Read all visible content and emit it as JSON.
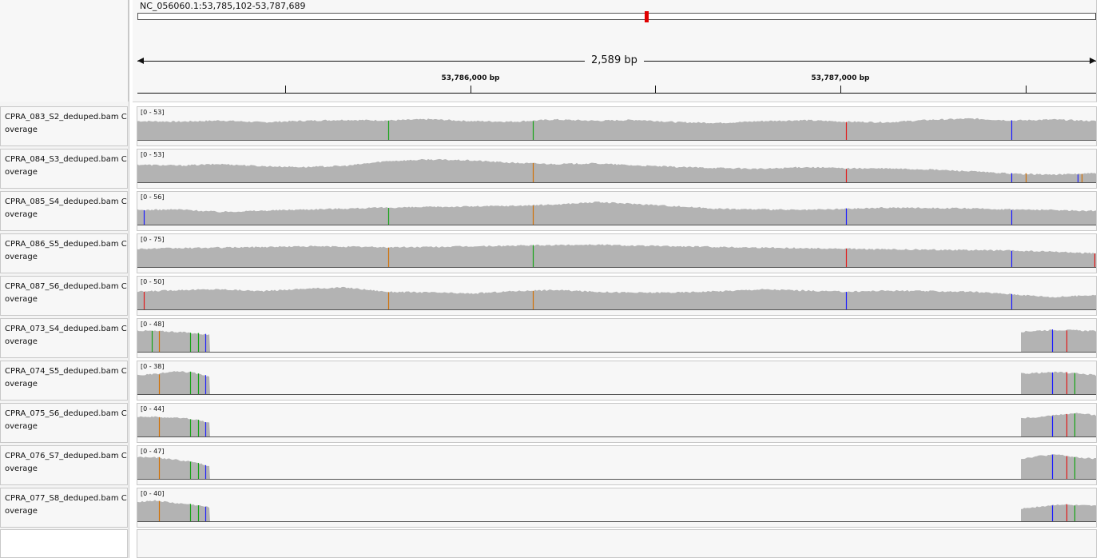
{
  "locus": "NC_056060.1:53,785,102-53,787,689",
  "span_label": "2,589 bp",
  "view": {
    "start": 53785102,
    "end": 53787689
  },
  "ruler": {
    "ticks": [
      53785500,
      53786000,
      53786500,
      53787000,
      53787500
    ],
    "labels": [
      {
        "pos": 53786000,
        "text": "53,786,000 bp"
      },
      {
        "pos": 53787000,
        "text": "53,787,000 bp"
      }
    ]
  },
  "colors": {
    "coverage": "#b3b3b3",
    "A": "#17a317",
    "C": "#1d1dff",
    "G": "#d17105",
    "T": "#e11c1c",
    "axis": "#555555"
  },
  "tracks": [
    {
      "name": "CPRA_083_S2_deduped.bam Coverage",
      "range": "[0 - 53]",
      "pattern": "full",
      "profile": [
        0.62,
        0.6,
        0.64,
        0.58,
        0.63,
        0.66,
        0.64,
        0.68,
        0.62,
        0.6,
        0.67,
        0.63,
        0.66,
        0.58,
        0.56,
        0.62,
        0.65,
        0.6,
        0.58,
        0.66,
        0.7,
        0.64,
        0.67,
        0.62
      ],
      "snps": [
        {
          "pos": 53785780,
          "c": "A"
        },
        {
          "pos": 53786170,
          "c": "A"
        },
        {
          "pos": 53787015,
          "c": "T"
        },
        {
          "pos": 53787460,
          "c": "C"
        }
      ]
    },
    {
      "name": "CPRA_084_S3_deduped.bam Coverage",
      "range": "[0 - 53]",
      "pattern": "full",
      "profile": [
        0.58,
        0.55,
        0.6,
        0.53,
        0.5,
        0.54,
        0.7,
        0.75,
        0.72,
        0.64,
        0.6,
        0.62,
        0.55,
        0.5,
        0.47,
        0.44,
        0.5,
        0.46,
        0.45,
        0.42,
        0.36,
        0.28,
        0.25,
        0.3
      ],
      "snps": [
        {
          "pos": 53786170,
          "c": "G"
        },
        {
          "pos": 53787015,
          "c": "T"
        },
        {
          "pos": 53787460,
          "c": "C"
        },
        {
          "pos": 53787500,
          "c": "G"
        },
        {
          "pos": 53787640,
          "c": "C"
        },
        {
          "pos": 53787650,
          "c": "G"
        }
      ]
    },
    {
      "name": "CPRA_085_S4_deduped.bam Coverage",
      "range": "[0 - 56]",
      "pattern": "full",
      "profile": [
        0.48,
        0.5,
        0.42,
        0.46,
        0.5,
        0.53,
        0.56,
        0.58,
        0.6,
        0.62,
        0.66,
        0.74,
        0.68,
        0.6,
        0.52,
        0.5,
        0.48,
        0.52,
        0.56,
        0.55,
        0.53,
        0.5,
        0.48,
        0.45
      ],
      "snps": [
        {
          "pos": 53785120,
          "c": "C"
        },
        {
          "pos": 53785780,
          "c": "A"
        },
        {
          "pos": 53786170,
          "c": "G"
        },
        {
          "pos": 53787015,
          "c": "C"
        },
        {
          "pos": 53787460,
          "c": "C"
        }
      ]
    },
    {
      "name": "CPRA_086_S5_deduped.bam Coverage",
      "range": "[0 - 75]",
      "pattern": "full",
      "profile": [
        0.6,
        0.62,
        0.64,
        0.66,
        0.68,
        0.67,
        0.65,
        0.66,
        0.68,
        0.7,
        0.72,
        0.74,
        0.7,
        0.68,
        0.66,
        0.64,
        0.62,
        0.6,
        0.58,
        0.57,
        0.56,
        0.54,
        0.5,
        0.45
      ],
      "snps": [
        {
          "pos": 53785780,
          "c": "G"
        },
        {
          "pos": 53786170,
          "c": "A"
        },
        {
          "pos": 53787015,
          "c": "T"
        },
        {
          "pos": 53787460,
          "c": "C"
        },
        {
          "pos": 53787685,
          "c": "T"
        }
      ]
    },
    {
      "name": "CPRA_087_S6_deduped.bam Coverage",
      "range": "[0 - 50]",
      "pattern": "full",
      "profile": [
        0.58,
        0.64,
        0.66,
        0.6,
        0.68,
        0.72,
        0.58,
        0.56,
        0.52,
        0.6,
        0.64,
        0.58,
        0.55,
        0.56,
        0.6,
        0.66,
        0.62,
        0.58,
        0.62,
        0.6,
        0.58,
        0.5,
        0.4,
        0.48
      ],
      "snps": [
        {
          "pos": 53785120,
          "c": "T"
        },
        {
          "pos": 53785780,
          "c": "G"
        },
        {
          "pos": 53786170,
          "c": "G"
        },
        {
          "pos": 53787015,
          "c": "C"
        },
        {
          "pos": 53787460,
          "c": "C"
        }
      ]
    },
    {
      "name": "CPRA_073_S4_deduped.bam Coverage",
      "range": "[0 - 48]",
      "pattern": "ends",
      "profile": [
        0.7,
        0.68,
        0.66,
        0.62,
        0.55
      ],
      "profile2": [
        0.66,
        0.7,
        0.72,
        0.7,
        0.68
      ],
      "snps": [
        {
          "pos": 53785140,
          "c": "A"
        },
        {
          "pos": 53785160,
          "c": "G"
        },
        {
          "pos": 53785245,
          "c": "A"
        },
        {
          "pos": 53785265,
          "c": "A"
        },
        {
          "pos": 53785285,
          "c": "C"
        },
        {
          "pos": 53787570,
          "c": "C"
        },
        {
          "pos": 53787610,
          "c": "T"
        }
      ]
    },
    {
      "name": "CPRA_074_S5_deduped.bam Coverage",
      "range": "[0 - 38]",
      "pattern": "ends",
      "profile": [
        0.62,
        0.66,
        0.74,
        0.72,
        0.55
      ],
      "profile2": [
        0.68,
        0.7,
        0.72,
        0.68,
        0.62
      ],
      "snps": [
        {
          "pos": 53785160,
          "c": "G"
        },
        {
          "pos": 53785245,
          "c": "A"
        },
        {
          "pos": 53785265,
          "c": "A"
        },
        {
          "pos": 53785285,
          "c": "C"
        },
        {
          "pos": 53787570,
          "c": "C"
        },
        {
          "pos": 53787610,
          "c": "T"
        },
        {
          "pos": 53787630,
          "c": "A"
        }
      ]
    },
    {
      "name": "CPRA_075_S6_deduped.bam Coverage",
      "range": "[0 - 44]",
      "pattern": "ends",
      "profile": [
        0.66,
        0.64,
        0.62,
        0.58,
        0.45
      ],
      "profile2": [
        0.6,
        0.64,
        0.72,
        0.76,
        0.7
      ],
      "snps": [
        {
          "pos": 53785160,
          "c": "G"
        },
        {
          "pos": 53785245,
          "c": "A"
        },
        {
          "pos": 53785265,
          "c": "A"
        },
        {
          "pos": 53785285,
          "c": "C"
        },
        {
          "pos": 53787570,
          "c": "C"
        },
        {
          "pos": 53787610,
          "c": "T"
        },
        {
          "pos": 53787630,
          "c": "A"
        }
      ]
    },
    {
      "name": "CPRA_076_S7_deduped.bam Coverage",
      "range": "[0 - 47]",
      "pattern": "ends",
      "profile": [
        0.72,
        0.7,
        0.64,
        0.56,
        0.42
      ],
      "profile2": [
        0.66,
        0.76,
        0.8,
        0.7,
        0.66
      ],
      "snps": [
        {
          "pos": 53785160,
          "c": "G"
        },
        {
          "pos": 53785245,
          "c": "A"
        },
        {
          "pos": 53785265,
          "c": "A"
        },
        {
          "pos": 53785285,
          "c": "C"
        },
        {
          "pos": 53787570,
          "c": "C"
        },
        {
          "pos": 53787610,
          "c": "T"
        },
        {
          "pos": 53787630,
          "c": "A"
        }
      ]
    },
    {
      "name": "CPRA_077_S8_deduped.bam Coverage",
      "range": "[0 - 40]",
      "pattern": "ends",
      "profile": [
        0.64,
        0.68,
        0.6,
        0.55,
        0.45
      ],
      "profile2": [
        0.42,
        0.48,
        0.55,
        0.52,
        0.5
      ],
      "snps": [
        {
          "pos": 53785160,
          "c": "G"
        },
        {
          "pos": 53785245,
          "c": "A"
        },
        {
          "pos": 53785265,
          "c": "A"
        },
        {
          "pos": 53785285,
          "c": "C"
        },
        {
          "pos": 53787570,
          "c": "C"
        },
        {
          "pos": 53787610,
          "c": "T"
        },
        {
          "pos": 53787630,
          "c": "A"
        }
      ]
    }
  ]
}
